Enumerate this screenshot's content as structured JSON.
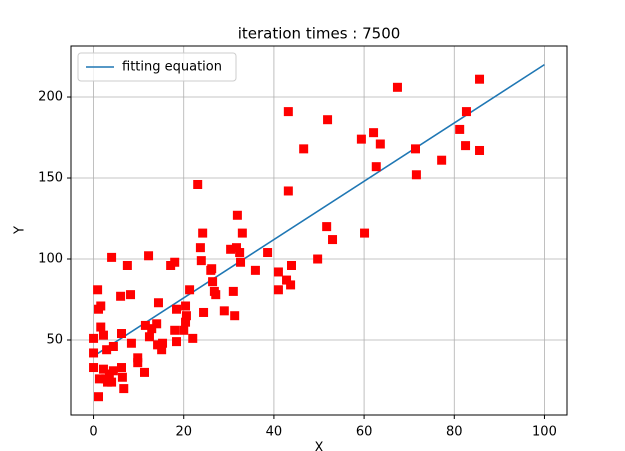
{
  "chart_data": {
    "type": "scatter",
    "title": "iteration times : 7500",
    "xlabel": "X",
    "ylabel": "Y",
    "xlim": [
      -5,
      105
    ],
    "ylim": [
      3.7,
      231.5
    ],
    "xticks": [
      0,
      20,
      40,
      60,
      80,
      100
    ],
    "yticks": [
      50,
      100,
      150,
      200
    ],
    "grid": true,
    "legend": "upper left",
    "series": [
      {
        "name": "fitting equation",
        "type": "line",
        "color": "#1f77b4",
        "x": [
          0,
          100
        ],
        "values": [
          40,
          220
        ]
      },
      {
        "type": "scatter",
        "marker": "square",
        "color": "#ff0000",
        "x": [
          0,
          0,
          0,
          0.9,
          1.1,
          1.1,
          1.6,
          1.6,
          1.3,
          2.2,
          2.2,
          2.7,
          2.9,
          3.1,
          3.5,
          4,
          4,
          4.4,
          4.4,
          6,
          6.2,
          6.2,
          6.4,
          6.7,
          7.5,
          8.2,
          8.4,
          9.8,
          9.8,
          11.3,
          11.5,
          12.2,
          12.4,
          12.9,
          14,
          14.4,
          14.2,
          15.1,
          15.3,
          17.1,
          18,
          18,
          18.4,
          18.4,
          20,
          20.4,
          20.4,
          20.6,
          21.3,
          22,
          23.1,
          23.7,
          24.2,
          23.9,
          24.4,
          26,
          26.2,
          26.4,
          26.8,
          27.1,
          29,
          30.4,
          31,
          31.3,
          31.9,
          31.7,
          32.4,
          32.6,
          33,
          35.9,
          38.6,
          41,
          41,
          42.8,
          43.2,
          43.2,
          43.7,
          43.9,
          46.6,
          49.7,
          51.7,
          51.9,
          53,
          59.4,
          60.1,
          62.1,
          62.7,
          63.6,
          67.4,
          71.4,
          71.6,
          77.2,
          81.2,
          82.7,
          82.5,
          85.6,
          85.6
        ],
        "values": [
          42,
          51,
          33,
          81,
          69,
          15,
          71,
          58,
          26,
          53,
          32,
          26,
          44,
          24,
          29,
          101,
          24,
          46,
          31,
          77,
          54,
          33,
          27,
          20,
          96,
          78,
          48,
          39,
          36,
          30,
          59,
          102,
          52,
          57,
          60,
          73,
          47,
          44,
          48,
          96,
          98,
          56,
          69,
          49,
          56,
          71,
          61,
          65,
          81,
          51,
          146,
          107,
          116,
          99,
          67,
          93,
          94,
          86,
          80,
          78,
          68,
          106,
          80,
          65,
          127,
          107,
          104,
          98,
          116,
          93,
          104,
          92,
          81,
          87,
          191,
          142,
          84,
          96,
          168,
          100,
          120,
          186,
          112,
          174,
          116,
          178,
          157,
          171,
          206,
          168,
          152,
          161,
          180,
          191,
          170,
          167,
          211
        ]
      }
    ]
  }
}
